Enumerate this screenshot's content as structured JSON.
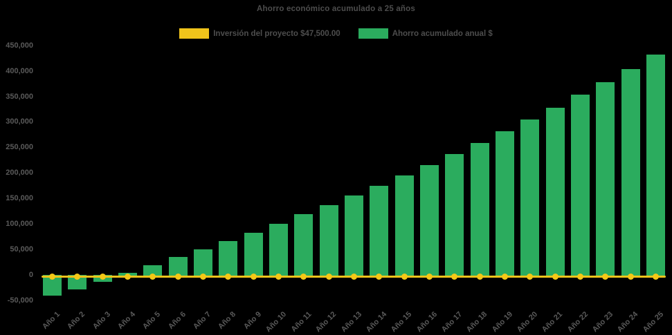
{
  "title": "Ahorro económico acumulado a 25 años",
  "legend": {
    "items": [
      {
        "label": "Inversión del proyecto $47,500.00",
        "color": "#f0c41b"
      },
      {
        "label": "Ahorro acumulado anual $",
        "color": "#2bac5e"
      }
    ]
  },
  "colors": {
    "background": "#000000",
    "bar": "#2bac5e",
    "line": "#f0c41b",
    "marker": "#f4c816",
    "title_text": "#4d4d4d",
    "axis_text": "#5a5a5a"
  },
  "chart_data": {
    "type": "bar",
    "title": "Ahorro económico acumulado a 25 años",
    "legend_position": "top",
    "gridlines": false,
    "background": "#000000",
    "categories": [
      "Año 1",
      "Año 2",
      "Año 3",
      "Año 4",
      "Año 5",
      "Año 6",
      "Año 7",
      "Año 8",
      "Año 9",
      "Año 10",
      "Año 11",
      "Año 12",
      "Año 13",
      "Año 14",
      "Año 15",
      "Año 16",
      "Año 17",
      "Año 18",
      "Año 19",
      "Año 20",
      "Año 21",
      "Año 22",
      "Año 23",
      "Año 24",
      "Año 25"
    ],
    "series": [
      {
        "name": "Inversión del proyecto $47,500.00",
        "type": "line",
        "color": "#f0c41b",
        "marker": "circle",
        "investment_amount": "$47,500.00",
        "constant_value": 0,
        "note": "flat line drawn along the zero baseline with one marker per year"
      },
      {
        "name": "Ahorro acumulado anual $",
        "type": "bar",
        "color": "#2bac5e",
        "values": [
          -37500,
          -25000,
          -10000,
          5000,
          19000,
          36000,
          50000,
          66500,
          83500,
          101000,
          119000,
          137500,
          156500,
          175000,
          196000,
          216000,
          237500,
          259500,
          282000,
          305000,
          328500,
          353500,
          379000,
          404000,
          432000
        ]
      }
    ],
    "y_axis": {
      "min": -50000,
      "max": 450000,
      "step": 50000,
      "tick_labels": [
        "450,000",
        "400,000",
        "350,000",
        "300,000",
        "250,000",
        "200,000",
        "150,000",
        "100,000",
        "50,000",
        "0",
        "-50,000"
      ]
    },
    "x_axis": {
      "label_rotation_deg": -45
    }
  }
}
